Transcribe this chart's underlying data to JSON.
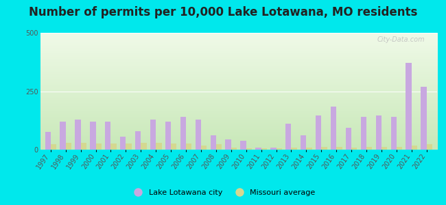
{
  "title": "Number of permits per 10,000 Lake Lotawana, MO residents",
  "years": [
    1997,
    1998,
    1999,
    2000,
    2001,
    2002,
    2003,
    2004,
    2005,
    2006,
    2007,
    2008,
    2009,
    2010,
    2011,
    2012,
    2013,
    2014,
    2015,
    2016,
    2017,
    2018,
    2019,
    2020,
    2021,
    2022
  ],
  "city_values": [
    75,
    120,
    130,
    120,
    120,
    55,
    80,
    130,
    120,
    140,
    130,
    60,
    45,
    38,
    8,
    8,
    110,
    60,
    145,
    185,
    95,
    140,
    145,
    140,
    370,
    270
  ],
  "state_values": [
    22,
    28,
    28,
    25,
    25,
    25,
    28,
    28,
    25,
    25,
    18,
    22,
    8,
    7,
    7,
    7,
    9,
    10,
    13,
    13,
    10,
    12,
    12,
    13,
    18,
    22
  ],
  "ylim": [
    0,
    500
  ],
  "yticks": [
    0,
    250,
    500
  ],
  "city_color": "#c8a8e0",
  "state_color": "#d4d890",
  "background_color_outer": "#00e8ec",
  "watermark_text": "City-Data.com",
  "legend_city": "Lake Lotawana city",
  "legend_state": "Missouri average",
  "bar_width": 0.38,
  "title_fontsize": 12,
  "tick_fontsize": 7
}
